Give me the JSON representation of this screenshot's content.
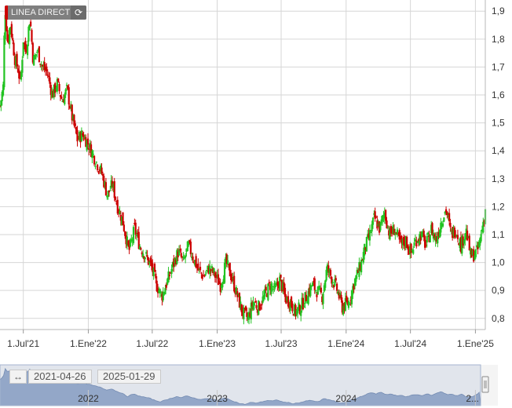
{
  "legend": {
    "label": "LINEA DIRECT"
  },
  "icons": {
    "reload": "reload-icon",
    "range_handle": "range-arrows-icon"
  },
  "colors": {
    "up": "#22c322",
    "down": "#cc0000",
    "grid": "#d6d6d6",
    "navigator": "#95a9c8"
  },
  "navigator": {
    "start_date": "2021-04-26",
    "end_date": "2025-01-29",
    "year_labels": [
      "2022",
      "2023",
      "2024",
      "2..."
    ]
  },
  "chart_data": {
    "type": "candlestick",
    "title": "",
    "xlabel": "",
    "ylabel": "",
    "ylim": [
      0.76,
      1.94
    ],
    "y_ticks": [
      "0,8",
      "0,9",
      "1,0",
      "1,1",
      "1,2",
      "1,3",
      "1,4",
      "1,5",
      "1,6",
      "1,7",
      "1,8",
      "1,9"
    ],
    "x_ticks": [
      {
        "date": "2021-07-01",
        "label": "1.Jul'21"
      },
      {
        "date": "2022-01-01",
        "label": "1.Ene'22"
      },
      {
        "date": "2022-07-01",
        "label": "1.Jul'22"
      },
      {
        "date": "2023-01-01",
        "label": "1.Ene'23"
      },
      {
        "date": "2023-07-01",
        "label": "1.Jul'23"
      },
      {
        "date": "2024-01-01",
        "label": "1.Ene'24"
      },
      {
        "date": "2024-07-01",
        "label": "1.Jul'24"
      },
      {
        "date": "2025-01-01",
        "label": "1.Ene'25"
      }
    ],
    "grid": true,
    "x_range": [
      "2021-04-26",
      "2025-01-29"
    ],
    "close_path": [
      [
        "2021-04-26",
        1.56
      ],
      [
        "2021-05-05",
        1.63
      ],
      [
        "2021-05-10",
        1.92
      ],
      [
        "2021-05-18",
        1.78
      ],
      [
        "2021-05-25",
        1.86
      ],
      [
        "2021-06-08",
        1.72
      ],
      [
        "2021-06-15",
        1.7
      ],
      [
        "2021-06-23",
        1.64
      ],
      [
        "2021-07-01",
        1.8
      ],
      [
        "2021-07-08",
        1.75
      ],
      [
        "2021-07-20",
        1.88
      ],
      [
        "2021-07-29",
        1.72
      ],
      [
        "2021-08-10",
        1.76
      ],
      [
        "2021-08-24",
        1.7
      ],
      [
        "2021-09-07",
        1.68
      ],
      [
        "2021-09-21",
        1.6
      ],
      [
        "2021-10-05",
        1.64
      ],
      [
        "2021-10-19",
        1.58
      ],
      [
        "2021-11-02",
        1.62
      ],
      [
        "2021-11-16",
        1.52
      ],
      [
        "2021-12-01",
        1.44
      ],
      [
        "2021-12-15",
        1.46
      ],
      [
        "2022-01-03",
        1.42
      ],
      [
        "2022-01-20",
        1.37
      ],
      [
        "2022-02-08",
        1.32
      ],
      [
        "2022-02-24",
        1.24
      ],
      [
        "2022-03-10",
        1.28
      ],
      [
        "2022-03-25",
        1.2
      ],
      [
        "2022-04-08",
        1.15
      ],
      [
        "2022-04-26",
        1.04
      ],
      [
        "2022-05-12",
        1.12
      ],
      [
        "2022-05-27",
        1.06
      ],
      [
        "2022-06-14",
        1.02
      ],
      [
        "2022-06-30",
        0.98
      ],
      [
        "2022-07-13",
        0.92
      ],
      [
        "2022-07-28",
        0.88
      ],
      [
        "2022-08-12",
        0.93
      ],
      [
        "2022-08-26",
        0.98
      ],
      [
        "2022-09-13",
        1.04
      ],
      [
        "2022-09-27",
        1.0
      ],
      [
        "2022-10-11",
        1.06
      ],
      [
        "2022-10-25",
        1.02
      ],
      [
        "2022-11-09",
        0.97
      ],
      [
        "2022-11-24",
        0.95
      ],
      [
        "2022-12-09",
        0.98
      ],
      [
        "2022-12-23",
        0.96
      ],
      [
        "2023-01-10",
        0.92
      ],
      [
        "2023-01-26",
        1.0
      ],
      [
        "2023-02-10",
        0.95
      ],
      [
        "2023-02-27",
        0.88
      ],
      [
        "2023-03-14",
        0.82
      ],
      [
        "2023-03-29",
        0.8
      ],
      [
        "2023-04-13",
        0.86
      ],
      [
        "2023-04-28",
        0.84
      ],
      [
        "2023-05-15",
        0.88
      ],
      [
        "2023-05-31",
        0.92
      ],
      [
        "2023-06-14",
        0.9
      ],
      [
        "2023-06-28",
        0.94
      ],
      [
        "2023-07-13",
        0.87
      ],
      [
        "2023-07-27",
        0.86
      ],
      [
        "2023-08-10",
        0.82
      ],
      [
        "2023-08-25",
        0.84
      ],
      [
        "2023-09-11",
        0.88
      ],
      [
        "2023-09-26",
        0.92
      ],
      [
        "2023-10-10",
        0.9
      ],
      [
        "2023-10-25",
        0.88
      ],
      [
        "2023-11-08",
        0.98
      ],
      [
        "2023-11-23",
        0.94
      ],
      [
        "2023-12-07",
        0.9
      ],
      [
        "2023-12-21",
        0.84
      ],
      [
        "2024-01-09",
        0.86
      ],
      [
        "2024-01-24",
        0.93
      ],
      [
        "2024-02-08",
        0.98
      ],
      [
        "2024-02-23",
        1.05
      ],
      [
        "2024-03-08",
        1.1
      ],
      [
        "2024-03-21",
        1.16
      ],
      [
        "2024-04-05",
        1.12
      ],
      [
        "2024-04-19",
        1.18
      ],
      [
        "2024-05-03",
        1.1
      ],
      [
        "2024-05-17",
        1.12
      ],
      [
        "2024-06-04",
        1.06
      ],
      [
        "2024-06-18",
        1.08
      ],
      [
        "2024-07-02",
        1.03
      ],
      [
        "2024-07-16",
        1.08
      ],
      [
        "2024-07-31",
        1.1
      ],
      [
        "2024-08-14",
        1.06
      ],
      [
        "2024-08-29",
        1.12
      ],
      [
        "2024-09-12",
        1.08
      ],
      [
        "2024-09-26",
        1.15
      ],
      [
        "2024-10-10",
        1.19
      ],
      [
        "2024-10-24",
        1.1
      ],
      [
        "2024-11-07",
        1.12
      ],
      [
        "2024-11-21",
        1.06
      ],
      [
        "2024-12-05",
        1.12
      ],
      [
        "2024-12-19",
        1.02
      ],
      [
        "2025-01-07",
        1.04
      ],
      [
        "2025-01-17",
        1.1
      ],
      [
        "2025-01-29",
        1.19
      ]
    ]
  }
}
